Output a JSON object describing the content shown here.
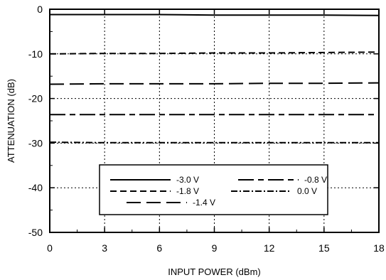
{
  "chart_data": {
    "type": "line",
    "title": "",
    "xlabel": "INPUT POWER (dBm)",
    "ylabel": "ATTENUATION (dB)",
    "xlim": [
      0,
      18
    ],
    "ylim": [
      -50,
      0
    ],
    "xticks": [
      0,
      3,
      6,
      9,
      12,
      15,
      18
    ],
    "yticks": [
      0,
      -10,
      -20,
      -30,
      -40,
      -50
    ],
    "x_tick_labels": [
      "0",
      "3",
      "6",
      "9",
      "12",
      "15",
      "18"
    ],
    "y_tick_labels": [
      "0",
      "-10",
      "-20",
      "-30",
      "-40",
      "-50"
    ],
    "grid": true,
    "grid_style": "dotted",
    "legend_position": "lower-center",
    "series": [
      {
        "name": "-3.0 V",
        "style": "solid",
        "color": "#000000",
        "x": [
          0,
          3,
          6,
          9,
          12,
          15,
          18
        ],
        "y": [
          -1.2,
          -1.2,
          -1.2,
          -1.3,
          -1.3,
          -1.3,
          -1.4
        ]
      },
      {
        "name": "-1.8 V",
        "style": "short-dash",
        "color": "#000000",
        "x": [
          0,
          3,
          6,
          9,
          12,
          15,
          18
        ],
        "y": [
          -10.0,
          -9.9,
          -9.9,
          -9.8,
          -9.8,
          -9.7,
          -9.6
        ]
      },
      {
        "name": "-1.4 V",
        "style": "long-dash",
        "color": "#000000",
        "x": [
          0,
          3,
          6,
          9,
          12,
          15,
          18
        ],
        "y": [
          -16.8,
          -16.7,
          -16.7,
          -16.7,
          -16.6,
          -16.6,
          -16.5
        ]
      },
      {
        "name": "-0.8 V",
        "style": "long-short-dash",
        "color": "#000000",
        "x": [
          0,
          3,
          6,
          9,
          12,
          15,
          18
        ],
        "y": [
          -23.6,
          -23.6,
          -23.6,
          -23.6,
          -23.6,
          -23.6,
          -23.6
        ]
      },
      {
        "name": "0.0 V",
        "style": "dash-dot",
        "color": "#000000",
        "x": [
          0,
          3,
          6,
          9,
          12,
          15,
          18
        ],
        "y": [
          -29.8,
          -29.9,
          -29.9,
          -29.9,
          -29.9,
          -29.9,
          -29.9
        ]
      }
    ]
  }
}
